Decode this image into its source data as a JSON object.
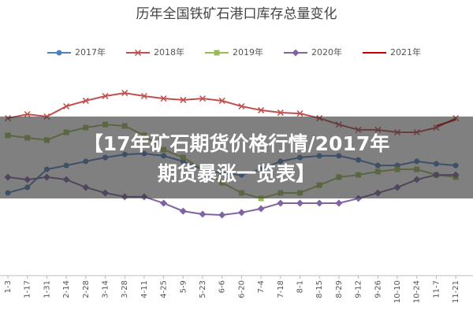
{
  "chart_data": {
    "type": "line",
    "title": "历年全国铁矿石港口库存总量变化",
    "categories": [
      "1-3",
      "1-17",
      "1-31",
      "2-14",
      "2-28",
      "3-14",
      "3-28",
      "4-11",
      "4-25",
      "5-9",
      "5-23",
      "6-6",
      "6-20",
      "7-4",
      "7-18",
      "8-1",
      "8-15",
      "8-29",
      "9-12",
      "9-26",
      "10-10",
      "10-24",
      "11-7",
      "11-21"
    ],
    "ylim": [
      0,
      100
    ],
    "legend": "top",
    "series": [
      {
        "name": "2017年",
        "color": "#4f81bd",
        "marker": "circle",
        "values": [
          40.4,
          43.1,
          51.9,
          53.8,
          55.8,
          57.7,
          59.2,
          59.6,
          58.5,
          55.8,
          51.9,
          50,
          49.2,
          51.9,
          55.8,
          57.7,
          58.5,
          58.5,
          56.5,
          53.8,
          53.8,
          55.8,
          54.6,
          53.8
        ]
      },
      {
        "name": "2018年",
        "color": "#c0504d",
        "marker": "x",
        "values": [
          76.9,
          78.8,
          77.7,
          82.7,
          85.4,
          87.7,
          89.2,
          87.7,
          86.5,
          85.8,
          86.5,
          85.4,
          82.7,
          80.8,
          79.6,
          79.2,
          76.9,
          73.8,
          71.2,
          71.2,
          70,
          70,
          72.3,
          76.9
        ]
      },
      {
        "name": "2019年",
        "color": "#9bbb59",
        "marker": "square",
        "values": [
          68.5,
          67.3,
          66.2,
          70,
          72.3,
          73.8,
          73.1,
          68.5,
          61.5,
          57.7,
          51.9,
          45.4,
          40.4,
          37.7,
          40.4,
          40.4,
          44.2,
          48.1,
          49.2,
          50.8,
          51.9,
          51.9,
          49.2,
          48.1
        ]
      },
      {
        "name": "2020年",
        "color": "#8064a2",
        "marker": "diamond",
        "values": [
          48.1,
          46.9,
          48.1,
          46.9,
          43.1,
          40.4,
          38.5,
          38.5,
          35.4,
          31.5,
          30,
          29.6,
          30.8,
          32.7,
          35.4,
          35.4,
          35.4,
          35.4,
          37.7,
          40.4,
          43.1,
          46.9,
          49.2,
          49.2
        ]
      },
      {
        "name": "2021年",
        "color": "#c00000",
        "marker": "none",
        "values": [
          null,
          null,
          null,
          null,
          null,
          null,
          null,
          null,
          null,
          null,
          null,
          null,
          null,
          null,
          null,
          null,
          null,
          null,
          null,
          null,
          null,
          null,
          73.1,
          76.2
        ]
      }
    ]
  },
  "overlay": {
    "lines": [
      "【17年矿石期货价格行情/2017年",
      "期货暴涨一览表】"
    ]
  }
}
